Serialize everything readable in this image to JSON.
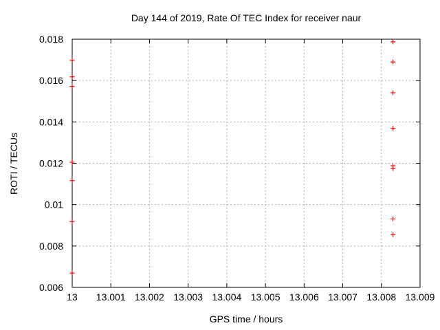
{
  "window": {
    "background": "#ffffff"
  },
  "chart_data": {
    "type": "scatter",
    "title": "Day 144 of 2019, Rate Of TEC Index for receiver naur",
    "xlabel": "GPS time / hours",
    "ylabel": "ROTI / TECUs",
    "xlim": [
      13.0,
      13.009
    ],
    "ylim": [
      0.006,
      0.018
    ],
    "xticks": [
      13.0,
      13.001,
      13.002,
      13.003,
      13.004,
      13.005,
      13.006,
      13.007,
      13.008,
      13.009
    ],
    "xtick_labels": [
      "13",
      "13.001",
      "13.002",
      "13.003",
      "13.004",
      "13.005",
      "13.006",
      "13.007",
      "13.008",
      "13.009"
    ],
    "yticks": [
      0.006,
      0.008,
      0.01,
      0.012,
      0.014,
      0.016,
      0.018
    ],
    "ytick_labels": [
      "0.006",
      "0.008",
      "0.01",
      "0.012",
      "0.014",
      "0.016",
      "0.018"
    ],
    "grid": true,
    "legend": "none",
    "marker": "plus",
    "colors": {
      "marker": "#ff0000",
      "grid": "#b0b0b0",
      "axis": "#000000",
      "background": "#ffffff"
    },
    "series": [
      {
        "name": "ROTI",
        "points": [
          [
            13.0,
            0.01698
          ],
          [
            13.0,
            0.01618
          ],
          [
            13.0,
            0.01572
          ],
          [
            13.0,
            0.01205
          ],
          [
            13.0,
            0.01116
          ],
          [
            13.0,
            0.00918
          ],
          [
            13.0,
            0.00669
          ],
          [
            13.0083,
            0.01787
          ],
          [
            13.0083,
            0.0169
          ],
          [
            13.0083,
            0.01541
          ],
          [
            13.0083,
            0.01369
          ],
          [
            13.0083,
            0.01188
          ],
          [
            13.0083,
            0.01175
          ],
          [
            13.0083,
            0.00931
          ],
          [
            13.0083,
            0.00855
          ]
        ]
      }
    ]
  }
}
